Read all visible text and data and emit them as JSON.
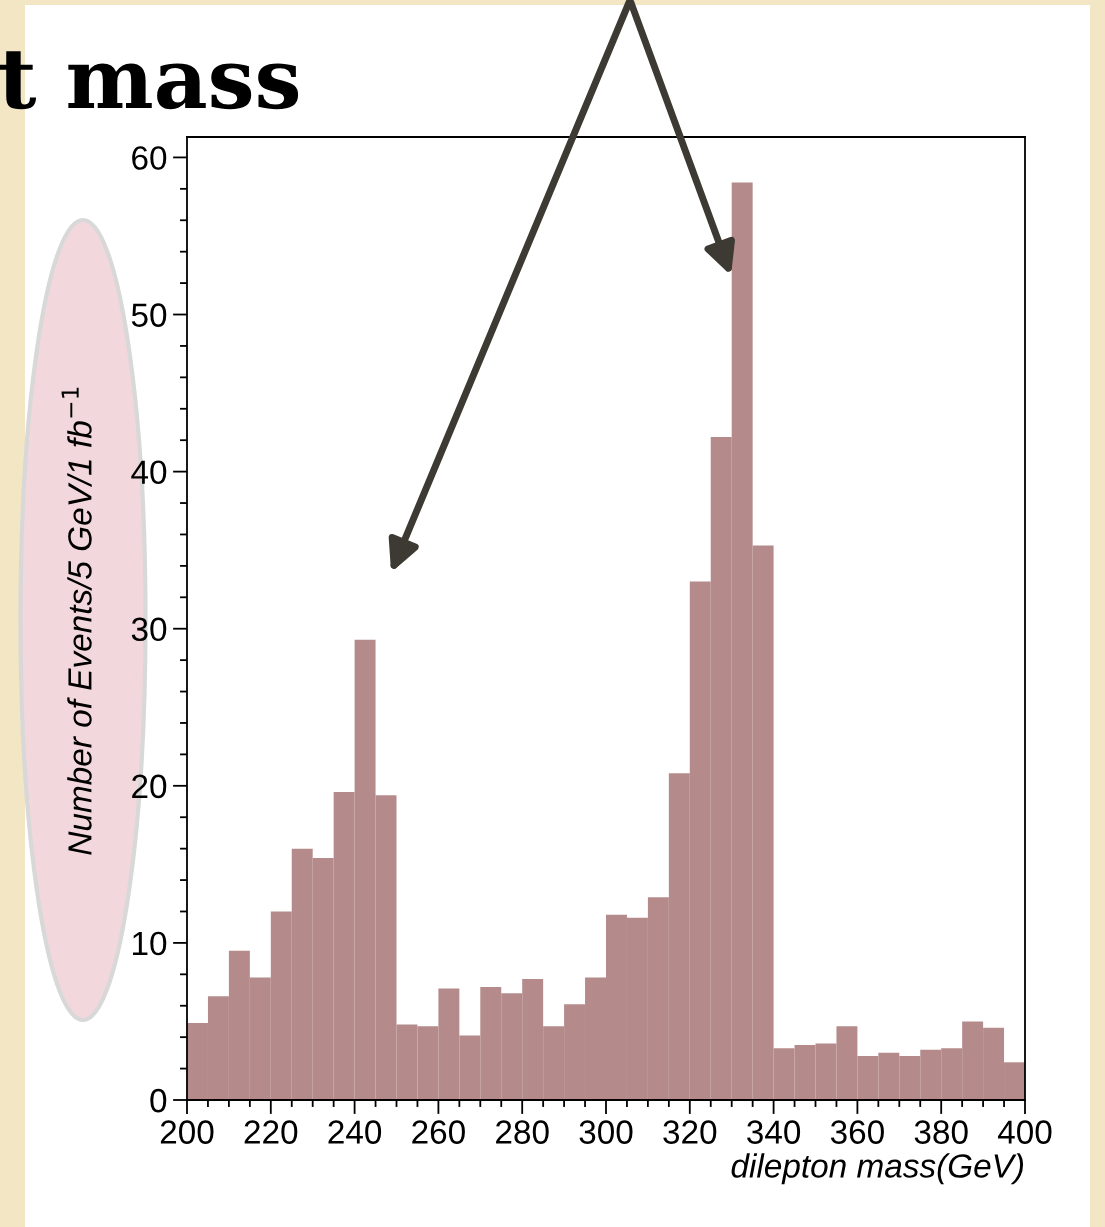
{
  "chart_data": {
    "type": "histogram",
    "title": "t mass",
    "xlabel": "dilepton mass(GeV)",
    "ylabel": "Number of Events/5 GeV/1 fb$^{−1}$",
    "bins": [
      200,
      205,
      210,
      215,
      220,
      225,
      230,
      235,
      240,
      245,
      250,
      255,
      260,
      265,
      270,
      275,
      280,
      285,
      290,
      295,
      300,
      305,
      310,
      315,
      320,
      325,
      330,
      335,
      340,
      345,
      350,
      355,
      360,
      365,
      370,
      375,
      380,
      385,
      390,
      395,
      400
    ],
    "values": [
      4.9,
      6.6,
      9.5,
      7.8,
      12.0,
      16.0,
      15.4,
      19.6,
      29.3,
      19.4,
      4.8,
      4.7,
      7.1,
      4.1,
      7.2,
      6.8,
      7.7,
      4.7,
      6.1,
      7.8,
      11.8,
      11.6,
      12.9,
      20.8,
      33.0,
      42.2,
      58.4,
      35.3,
      3.3,
      3.5,
      3.6,
      4.7,
      2.8,
      3.0,
      2.8,
      3.2,
      3.3,
      5.0,
      4.6,
      2.4
    ],
    "color": "#b48a8b",
    "xlim": [
      200,
      400
    ],
    "xticks": [
      200,
      220,
      240,
      260,
      280,
      300,
      320,
      340,
      360,
      380,
      400
    ],
    "ylim": [
      0,
      61.3
    ],
    "yticks": [
      0,
      10,
      20,
      30,
      40,
      50,
      60
    ],
    "grid": false,
    "legend": false
  }
}
